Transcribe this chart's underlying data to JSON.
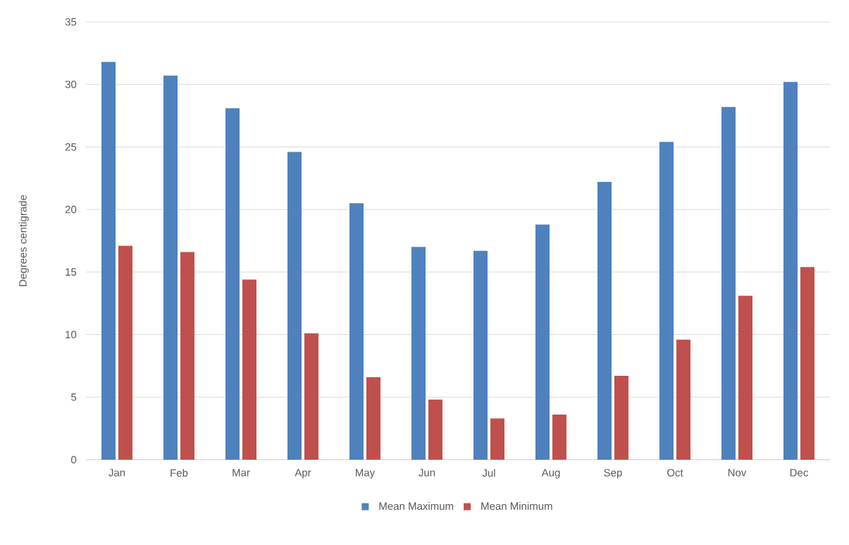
{
  "chart_data": {
    "type": "bar",
    "ylabel": "Degrees centigrade",
    "categories": [
      "Jan",
      "Feb",
      "Mar",
      "Apr",
      "May",
      "Jun",
      "Jul",
      "Aug",
      "Sep",
      "Oct",
      "Nov",
      "Dec"
    ],
    "series": [
      {
        "name": "Mean Maximum",
        "color": "#4f81bd",
        "values": [
          31.8,
          30.7,
          28.1,
          24.6,
          20.5,
          17.0,
          16.7,
          18.8,
          22.2,
          25.4,
          28.2,
          30.2
        ]
      },
      {
        "name": "Mean Minimum",
        "color": "#c0504d",
        "values": [
          17.1,
          16.6,
          14.4,
          10.1,
          6.6,
          4.8,
          3.3,
          3.6,
          6.7,
          9.6,
          13.1,
          15.4
        ]
      }
    ],
    "ylim": [
      0,
      35
    ],
    "yticks": [
      0,
      5,
      10,
      15,
      20,
      25,
      30,
      35
    ],
    "grid": "y",
    "legend": "bottom"
  }
}
